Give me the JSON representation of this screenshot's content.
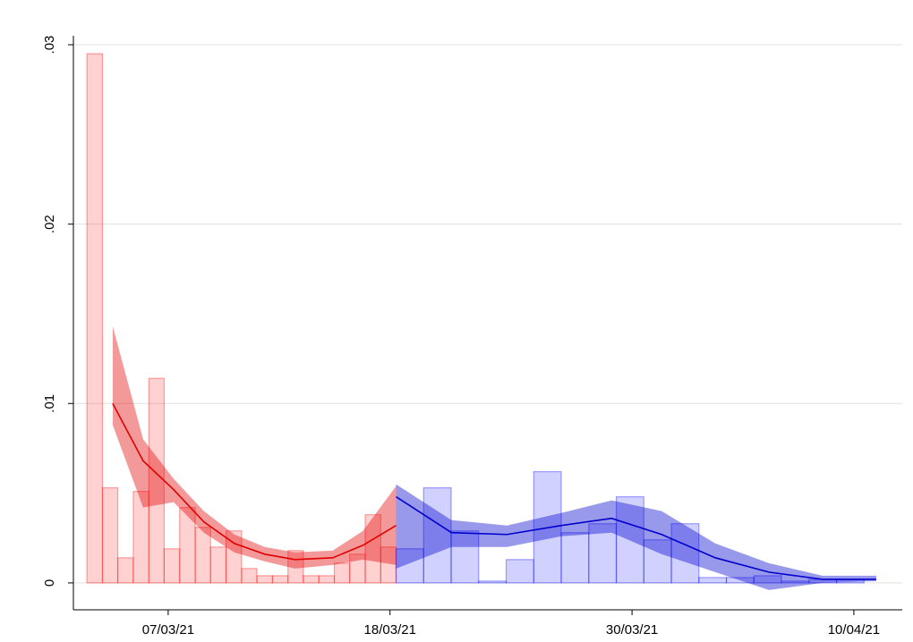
{
  "chart_data": {
    "type": "histogram",
    "xlim": [
      2.3,
      43.4
    ],
    "ylim": [
      -0.0015,
      0.0305
    ],
    "xticks": [
      {
        "value": 7,
        "label": "07/03/21"
      },
      {
        "value": 18,
        "label": "18/03/21"
      },
      {
        "value": 30,
        "label": "30/03/21"
      },
      {
        "value": 41,
        "label": "10/04/21"
      }
    ],
    "yticks": [
      0,
      {
        "value": 0.01,
        "label": ".01"
      },
      {
        "value": 0.02,
        "label": ".02"
      },
      {
        "value": 0.03,
        "label": ".03"
      }
    ],
    "grid": true,
    "series": [
      {
        "color": "#ff0000",
        "bins": [
          2.97,
          3.74,
          4.5,
          5.27,
          6.04,
          6.8,
          7.57,
          8.34,
          9.1,
          9.87,
          10.64,
          11.4,
          12.17,
          12.94,
          13.7,
          14.47,
          15.24,
          16.0,
          16.77,
          17.54,
          18.3
        ],
        "values": [
          0.0295,
          0.0053,
          0.0014,
          0.0051,
          0.0114,
          0.0019,
          0.0042,
          0.0031,
          0.002,
          0.0029,
          0.0008,
          0.0004,
          0.0004,
          0.0018,
          0.0004,
          0.0004,
          0.0011,
          0.0016,
          0.0038,
          0.002
        ]
      },
      {
        "color": "#0000ff",
        "bins": [
          18.3,
          19.665,
          21.03,
          22.395,
          23.76,
          25.125,
          26.49,
          27.855,
          29.22,
          30.585,
          31.95,
          33.315,
          34.68,
          36.045,
          37.41,
          38.775,
          40.14,
          41.505
        ],
        "values": [
          0.0019,
          0.0053,
          0.0029,
          0.0001,
          0.0013,
          0.0062,
          0.0028,
          0.0033,
          0.0048,
          0.0024,
          0.0033,
          0.0003,
          0.0003,
          0.0004,
          0.0001,
          0.0002,
          0.0002
        ]
      }
    ],
    "lines": [
      {
        "color": "#e00000",
        "x": [
          4.25,
          5.76,
          7.27,
          8.77,
          10.28,
          11.79,
          13.29,
          15.16,
          16.66,
          18.3
        ],
        "values": [
          0.01,
          0.0068,
          0.0052,
          0.0034,
          0.0022,
          0.0016,
          0.0013,
          0.0014,
          0.0021,
          0.0032
        ],
        "upper": [
          0.0143,
          0.008,
          0.0058,
          0.004,
          0.0027,
          0.002,
          0.0017,
          0.0018,
          0.0029,
          0.0054
        ],
        "lower": [
          0.0088,
          0.0042,
          0.0045,
          0.0028,
          0.0017,
          0.0012,
          0.0008,
          0.001,
          0.0013,
          0.001
        ]
      },
      {
        "color": "#0000cc",
        "x": [
          18.3,
          21.05,
          23.8,
          26.5,
          28.99,
          31.47,
          34.13,
          36.79,
          39.45,
          42.11
        ],
        "values": [
          0.0048,
          0.0028,
          0.0027,
          0.0032,
          0.0036,
          0.0027,
          0.0014,
          0.0006,
          0.0002,
          0.0002
        ],
        "upper": [
          0.0055,
          0.0035,
          0.0032,
          0.0039,
          0.0046,
          0.004,
          0.0022,
          0.0011,
          0.0004,
          0.0004
        ],
        "lower": [
          0.0008,
          0.002,
          0.002,
          0.0026,
          0.0028,
          0.0016,
          0.0006,
          -0.0004,
          0.0,
          0.0001
        ]
      }
    ]
  }
}
